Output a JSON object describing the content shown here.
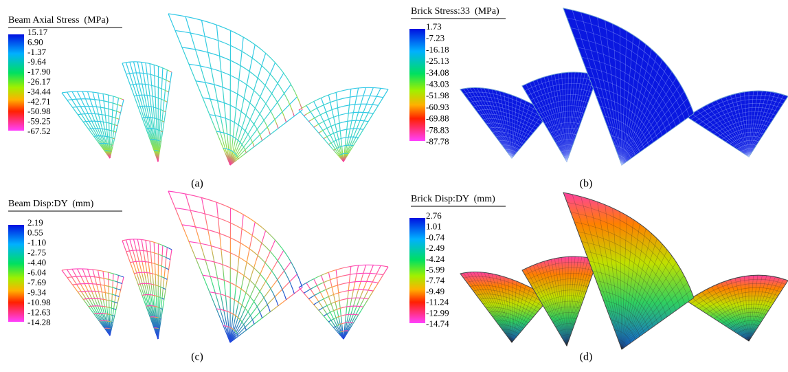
{
  "panels": [
    {
      "legend_title": "Beam Axial Stress  (MPa)",
      "legend_labels": [
        "15.17",
        "6.90",
        "-1.37",
        "-9.64",
        "-17.90",
        "-26.17",
        "-34.44",
        "-42.71",
        "-50.98",
        "-59.25",
        "-67.52"
      ],
      "caption": "(a)"
    },
    {
      "legend_title": "Brick Stress:33  (MPa)",
      "legend_labels": [
        "1.73",
        "-7.23",
        "-16.18",
        "-25.13",
        "-34.08",
        "-43.03",
        "-51.98",
        "-60.93",
        "-69.88",
        "-78.83",
        "-87.78"
      ],
      "caption": "(b)"
    },
    {
      "legend_title": "Beam Disp:DY  (mm)",
      "legend_labels": [
        "2.19",
        "0.55",
        "-1.10",
        "-2.75",
        "-4.40",
        "-6.04",
        "-7.69",
        "-9.34",
        "-10.98",
        "-12.63",
        "-14.28"
      ],
      "caption": "(c)"
    },
    {
      "legend_title": "Brick Disp:DY  (mm)",
      "legend_labels": [
        "2.76",
        "1.01",
        "-0.74",
        "-2.49",
        "-4.24",
        "-5.99",
        "-7.74",
        "-9.49",
        "-11.24",
        "-12.99",
        "-14.74"
      ],
      "caption": "(d)"
    }
  ]
}
